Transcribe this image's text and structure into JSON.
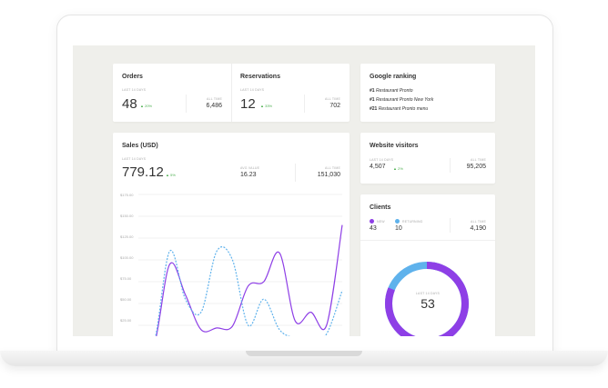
{
  "orders": {
    "title": "Orders",
    "period": "LAST 14 DAYS",
    "value": "48",
    "change": "20%",
    "all_time_label": "ALL TIME",
    "all_time_value": "6,486"
  },
  "reservations": {
    "title": "Reservations",
    "period": "LAST 14 DAYS",
    "value": "12",
    "change": "33%",
    "all_time_label": "ALL TIME",
    "all_time_value": "702"
  },
  "google_ranking": {
    "title": "Google ranking",
    "items": [
      {
        "rank": "#1",
        "name": "Restaurant Pronto"
      },
      {
        "rank": "#1",
        "name": "Restaurant Pronto New York"
      },
      {
        "rank": "#21",
        "name": "Restaurant Pronto menu"
      }
    ]
  },
  "sales": {
    "title": "Sales (USD)",
    "period": "LAST 14 DAYS",
    "value": "779.12",
    "change": "5%",
    "avg_label": "AVG VALUE",
    "avg_value": "16.23",
    "all_time_label": "ALL TIME",
    "all_time_value": "151,030"
  },
  "website_visitors": {
    "title": "Website visitors",
    "period": "LAST 14 DAYS",
    "value": "4,507",
    "change": "2%",
    "all_time_label": "ALL TIME",
    "all_time_value": "95,205"
  },
  "clients": {
    "title": "Clients",
    "new_label": "NEW",
    "new_value": "43",
    "returning_label": "RETURNING",
    "returning_value": "10",
    "all_time_label": "ALL TIME",
    "all_time_value": "4,190",
    "donut_label": "LAST 14 DAYS",
    "donut_value": "53",
    "new_color": "#8e3fe6",
    "returning_color": "#5fb2ec"
  },
  "chart_data": {
    "type": "line",
    "title": "",
    "xlabel": "",
    "ylabel": "",
    "y_tick_labels": [
      "$175.00",
      "$150.00",
      "$125.00",
      "$100.00",
      "$75.00",
      "$50.00",
      "$25.00"
    ],
    "ylim": [
      0,
      175
    ],
    "grid": true,
    "series": [
      {
        "style": "solid",
        "color": "#8e3fe6",
        "x": [
          0,
          1,
          2,
          3,
          4,
          5,
          6,
          7,
          8,
          9,
          10,
          11,
          12,
          13
        ],
        "y": [
          0,
          2,
          95,
          60,
          20,
          22,
          24,
          70,
          75,
          108,
          30,
          40,
          25,
          140
        ]
      },
      {
        "style": "dashed",
        "color": "#5fb2ec",
        "x": [
          0,
          1,
          2,
          3,
          4,
          5,
          6,
          7,
          8,
          9,
          10,
          11,
          12,
          13
        ],
        "y": [
          0,
          5,
          110,
          55,
          40,
          110,
          100,
          25,
          55,
          20,
          10,
          5,
          15,
          65
        ]
      }
    ]
  }
}
